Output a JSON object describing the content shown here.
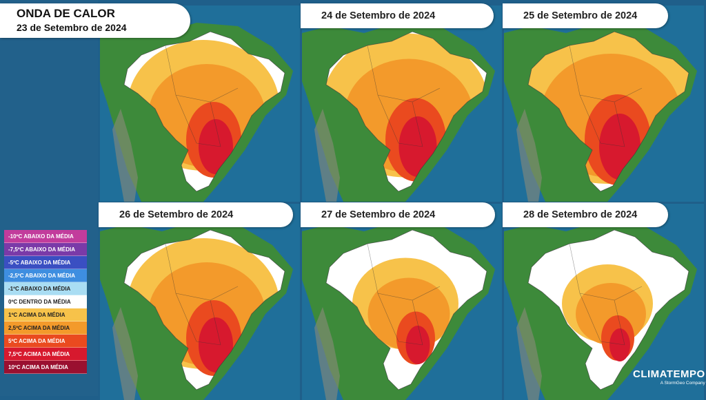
{
  "header": {
    "title": "ONDA DE CALOR",
    "date": "23 de Setembro de 2024"
  },
  "panels": [
    {
      "date": "",
      "level": 1.0
    },
    {
      "date": "24 de Setembro de 2024",
      "level": 1.1
    },
    {
      "date": "25 de Setembro de 2024",
      "level": 1.2
    },
    {
      "date": "26 de Setembro de 2024",
      "level": 1.0
    },
    {
      "date": "27 de Setembro de 2024",
      "level": 0.7
    },
    {
      "date": "28 de Setembro de 2024",
      "level": 0.6
    }
  ],
  "legend": [
    {
      "label": "-10ºC ABAIXO DA MÉDIA",
      "color": "#c23c9c"
    },
    {
      "label": "-7,5ºC ABAIXO DA MÉDIA",
      "color": "#7a3aa8"
    },
    {
      "label": "-5ºC ABAIXO DA MÉDIA",
      "color": "#3a4fc2"
    },
    {
      "label": "-2,5ºC ABAIXO DA MÉDIA",
      "color": "#3e8ee0"
    },
    {
      "label": "-1ºC ABAIXO DA MÉDIA",
      "color": "#a9ddf3"
    },
    {
      "label": "0ºC DENTRO DA MÉDIA",
      "color": "#ffffff"
    },
    {
      "label": "1ºC ACIMA DA MÉDIA",
      "color": "#f7c24a"
    },
    {
      "label": "2,5ºC ACIMA DA MÉDIA",
      "color": "#f39a2b"
    },
    {
      "label": "5ºC ACIMA DA MÉDIA",
      "color": "#ea4a1f"
    },
    {
      "label": "7,5ºC ACIMA DA MÉDIA",
      "color": "#d7192e"
    },
    {
      "label": "10ºC ACIMA DA MÉDIA",
      "color": "#9a1030"
    }
  ],
  "logo": {
    "name": "CLIMATEMPO",
    "tagline": "A StormGeo Company"
  },
  "colors": {
    "ocean": "#1f6f9a",
    "land": "#3d8a3a",
    "white_zone": "#ffffff",
    "anomaly_1": "#f7c24a",
    "anomaly_2_5": "#f39a2b",
    "anomaly_5": "#ea4a1f",
    "anomaly_7_5": "#d7192e"
  }
}
